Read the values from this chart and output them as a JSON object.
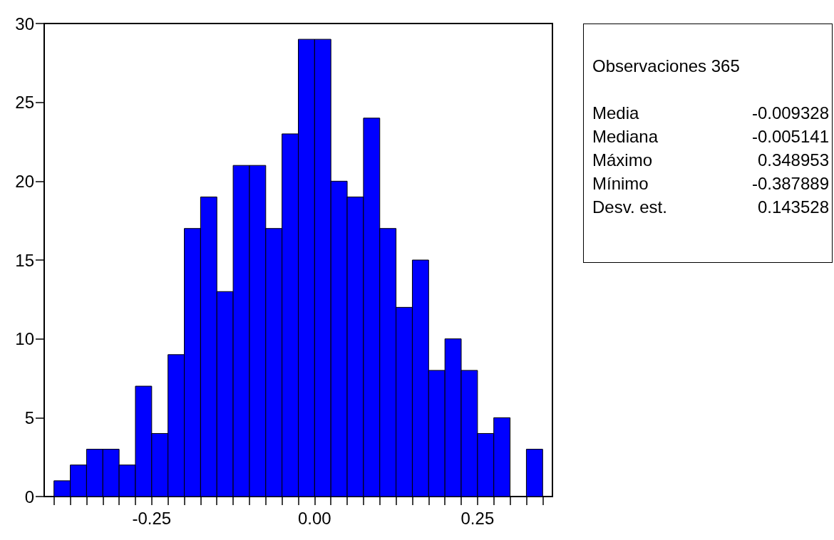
{
  "chart_data": {
    "type": "histogram",
    "bins": [
      -0.4,
      -0.375,
      -0.35,
      -0.325,
      -0.3,
      -0.275,
      -0.25,
      -0.225,
      -0.2,
      -0.175,
      -0.15,
      -0.125,
      -0.1,
      -0.075,
      -0.05,
      -0.025,
      0,
      0.025,
      0.05,
      0.075,
      0.1,
      0.125,
      0.15,
      0.175,
      0.2,
      0.225,
      0.25,
      0.275,
      0.3,
      0.325,
      0.35
    ],
    "values": [
      1,
      2,
      3,
      3,
      2,
      7,
      4,
      9,
      17,
      19,
      13,
      21,
      21,
      17,
      23,
      29,
      29,
      20,
      19,
      24,
      17,
      12,
      15,
      8,
      10,
      8,
      4,
      5,
      0,
      3
    ],
    "color": "#0000ff",
    "xlim": [
      -0.415,
      0.365
    ],
    "xticks": [
      {
        "value": -0.4,
        "label": null
      },
      {
        "value": -0.375,
        "label": null
      },
      {
        "value": -0.35,
        "label": null
      },
      {
        "value": -0.325,
        "label": null
      },
      {
        "value": -0.3,
        "label": null
      },
      {
        "value": -0.275,
        "label": null
      },
      -0.25,
      {
        "value": -0.225,
        "label": null
      },
      {
        "value": -0.2,
        "label": null
      },
      {
        "value": -0.175,
        "label": null
      },
      {
        "value": -0.15,
        "label": null
      },
      {
        "value": -0.125,
        "label": null
      },
      {
        "value": -0.1,
        "label": null
      },
      {
        "value": -0.075,
        "label": null
      },
      {
        "value": -0.05,
        "label": null
      },
      {
        "value": -0.025,
        "label": null
      },
      {
        "value": 0,
        "label": "0.00"
      },
      {
        "value": 0.025,
        "label": null
      },
      {
        "value": 0.05,
        "label": null
      },
      {
        "value": 0.075,
        "label": null
      },
      {
        "value": 0.1,
        "label": null
      },
      {
        "value": 0.125,
        "label": null
      },
      {
        "value": 0.15,
        "label": null
      },
      {
        "value": 0.175,
        "label": null
      },
      {
        "value": 0.2,
        "label": null
      },
      {
        "value": 0.225,
        "label": null
      },
      0.25,
      {
        "value": 0.275,
        "label": null
      },
      {
        "value": 0.3,
        "label": null
      },
      {
        "value": 0.325,
        "label": null
      },
      {
        "value": 0.35,
        "label": null
      }
    ],
    "ylim": [
      0,
      30
    ],
    "yticks": [
      0,
      5,
      10,
      15,
      20,
      25,
      30
    ],
    "annotations": [
      "Observaciones 365",
      "Media -0.009328",
      "Mediana -0.005141",
      "Máximo 0.348953",
      "Mínimo -0.387889",
      "Desv. est. 0.143528"
    ]
  }
}
